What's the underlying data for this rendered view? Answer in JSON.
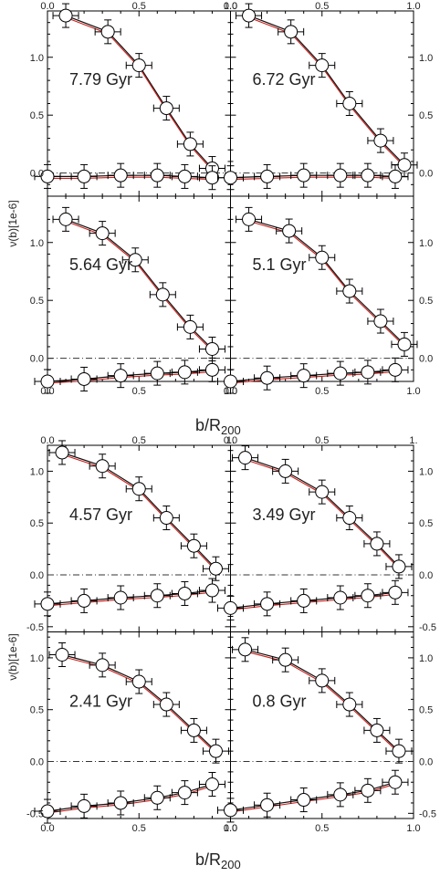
{
  "figure": {
    "xlabel_main": "b/R",
    "xlabel_sub": "200",
    "ylabel": "ν(b)[1e-6]",
    "colors": {
      "model_black": "#111111",
      "model_red": "#cc1f1a",
      "zero_line": "#333333",
      "frame": "#000000"
    }
  },
  "chart_data": [
    {
      "group": "top",
      "type": "scatter",
      "ylim": [
        -0.2,
        1.4
      ],
      "xlim": [
        0.0,
        1.0
      ],
      "x_top_ticks": [
        "0.0",
        "0.5",
        "1.0"
      ],
      "x_bottom_ticks": [
        "0.0",
        "0.5",
        "1.0"
      ],
      "y_ticks": [
        "0.0",
        "0.5",
        "1.0"
      ],
      "panels": [
        {
          "label": "7.79 Gyr",
          "upper": {
            "x": [
              0.1,
              0.33,
              0.5,
              0.65,
              0.78,
              0.9
            ],
            "y": [
              1.36,
              1.22,
              0.93,
              0.56,
              0.25,
              0.04
            ]
          },
          "lower": {
            "x": [
              0.0,
              0.2,
              0.4,
              0.6,
              0.75,
              0.9
            ],
            "y": [
              -0.03,
              -0.03,
              -0.02,
              -0.02,
              -0.03,
              -0.04
            ]
          }
        },
        {
          "label": "6.72 Gyr",
          "upper": {
            "x": [
              0.1,
              0.33,
              0.5,
              0.65,
              0.82,
              0.95
            ],
            "y": [
              1.36,
              1.22,
              0.93,
              0.6,
              0.28,
              0.07
            ]
          },
          "lower": {
            "x": [
              0.0,
              0.2,
              0.4,
              0.6,
              0.75,
              0.9
            ],
            "y": [
              -0.04,
              -0.03,
              -0.02,
              -0.02,
              -0.02,
              -0.03
            ]
          }
        },
        {
          "label": "5.64 Gyr",
          "upper": {
            "x": [
              0.1,
              0.3,
              0.48,
              0.63,
              0.78,
              0.9
            ],
            "y": [
              1.2,
              1.08,
              0.85,
              0.55,
              0.27,
              0.08
            ]
          },
          "lower": {
            "x": [
              0.0,
              0.2,
              0.4,
              0.6,
              0.75,
              0.9
            ],
            "y": [
              -0.2,
              -0.18,
              -0.15,
              -0.13,
              -0.12,
              -0.1
            ]
          }
        },
        {
          "label": "5.1 Gyr",
          "upper": {
            "x": [
              0.1,
              0.32,
              0.5,
              0.65,
              0.82,
              0.95
            ],
            "y": [
              1.2,
              1.1,
              0.87,
              0.58,
              0.32,
              0.12
            ]
          },
          "lower": {
            "x": [
              0.0,
              0.2,
              0.4,
              0.6,
              0.75,
              0.9
            ],
            "y": [
              -0.2,
              -0.17,
              -0.15,
              -0.13,
              -0.12,
              -0.1
            ]
          }
        }
      ]
    },
    {
      "group": "bottom",
      "type": "scatter",
      "ylim": [
        -0.55,
        1.25
      ],
      "xlim": [
        0.0,
        1.0
      ],
      "x_top_ticks": [
        "0.0",
        "0.5",
        "1."
      ],
      "x_bottom_ticks": [
        "0.0",
        "0.5",
        "1.0"
      ],
      "y_ticks_left": [
        "1.0",
        "0.5",
        "0.0",
        "-0.5"
      ],
      "y_ticks_right": [
        "1.0",
        "0.5",
        "0.0",
        "-0.5"
      ],
      "panels": [
        {
          "label": "4.57 Gyr",
          "upper": {
            "x": [
              0.08,
              0.3,
              0.5,
              0.65,
              0.8,
              0.92
            ],
            "y": [
              1.18,
              1.05,
              0.83,
              0.55,
              0.28,
              0.06
            ]
          },
          "lower": {
            "x": [
              0.0,
              0.2,
              0.4,
              0.6,
              0.75,
              0.9
            ],
            "y": [
              -0.28,
              -0.25,
              -0.22,
              -0.2,
              -0.18,
              -0.15
            ]
          }
        },
        {
          "label": "3.49 Gyr",
          "upper": {
            "x": [
              0.08,
              0.3,
              0.5,
              0.65,
              0.8,
              0.92
            ],
            "y": [
              1.13,
              1.0,
              0.8,
              0.55,
              0.3,
              0.08
            ]
          },
          "lower": {
            "x": [
              0.0,
              0.2,
              0.4,
              0.6,
              0.75,
              0.9
            ],
            "y": [
              -0.32,
              -0.28,
              -0.25,
              -0.22,
              -0.2,
              -0.17
            ]
          }
        },
        {
          "label": "2.41 Gyr",
          "upper": {
            "x": [
              0.08,
              0.3,
              0.5,
              0.65,
              0.8,
              0.92
            ],
            "y": [
              1.03,
              0.93,
              0.77,
              0.55,
              0.3,
              0.1
            ]
          },
          "lower": {
            "x": [
              0.0,
              0.2,
              0.4,
              0.6,
              0.75,
              0.9
            ],
            "y": [
              -0.48,
              -0.43,
              -0.4,
              -0.35,
              -0.3,
              -0.22
            ]
          }
        },
        {
          "label": "0.8 Gyr",
          "upper": {
            "x": [
              0.08,
              0.3,
              0.5,
              0.65,
              0.8,
              0.92
            ],
            "y": [
              1.08,
              0.98,
              0.78,
              0.55,
              0.3,
              0.1
            ]
          },
          "lower": {
            "x": [
              0.0,
              0.2,
              0.4,
              0.6,
              0.75,
              0.9
            ],
            "y": [
              -0.47,
              -0.42,
              -0.37,
              -0.32,
              -0.28,
              -0.2
            ]
          }
        }
      ]
    }
  ]
}
